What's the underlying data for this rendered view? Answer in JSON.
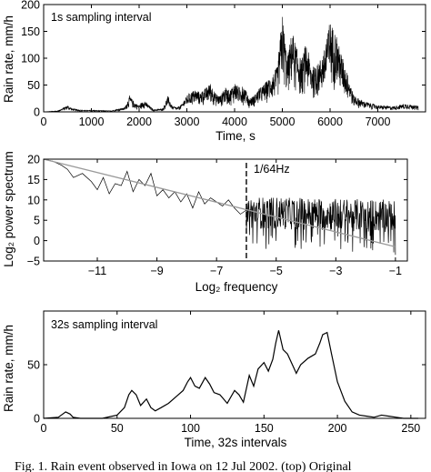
{
  "caption": "Fig. 1. Rain event observed in Iowa on 12 Jul 2002. (top) Original",
  "chart_data": [
    {
      "type": "line",
      "annotation": "1s sampling interval",
      "xlabel": "Time, s",
      "ylabel": "Rain rate, mm/h",
      "xlim": [
        0,
        8000
      ],
      "ylim": [
        0,
        200
      ],
      "xticks": [
        0,
        1000,
        2000,
        3000,
        4000,
        5000,
        6000,
        7000
      ],
      "yticks": [
        0,
        50,
        100,
        150,
        200
      ],
      "envelope": {
        "x": [
          0,
          300,
          500,
          600,
          800,
          1000,
          1400,
          1700,
          1800,
          1900,
          2000,
          2100,
          2300,
          2500,
          2600,
          2700,
          2800,
          2900,
          3000,
          3100,
          3200,
          3300,
          3400,
          3500,
          3600,
          3700,
          3800,
          3900,
          4000,
          4100,
          4200,
          4300,
          4400,
          4500,
          4600,
          4700,
          4800,
          4900,
          5000,
          5100,
          5200,
          5300,
          5400,
          5500,
          5600,
          5700,
          5800,
          5900,
          6000,
          6100,
          6200,
          6300,
          6400,
          6500,
          6700,
          7000,
          7300,
          7600,
          8000
        ],
        "y": [
          0,
          2,
          12,
          6,
          3,
          3,
          2,
          8,
          30,
          18,
          12,
          22,
          4,
          6,
          30,
          10,
          8,
          15,
          30,
          38,
          40,
          35,
          45,
          52,
          35,
          30,
          45,
          40,
          55,
          45,
          48,
          25,
          30,
          42,
          50,
          60,
          70,
          85,
          185,
          100,
          150,
          120,
          95,
          130,
          90,
          80,
          100,
          120,
          170,
          150,
          120,
          90,
          60,
          30,
          20,
          12,
          10,
          15,
          8
        ]
      }
    },
    {
      "type": "line",
      "annotation": "1/64Hz",
      "xlabel": "Log₂ frequency",
      "ylabel": "Log₂ power spectrum",
      "xlim": [
        -12.8,
        -0.6
      ],
      "ylim": [
        -5,
        20
      ],
      "xticks": [
        -11,
        -9,
        -7,
        -5,
        -3,
        -1
      ],
      "yticks": [
        -5,
        0,
        5,
        10,
        15,
        20
      ],
      "marker_x": -6,
      "spectrum": {
        "x": [
          -12.8,
          -12.5,
          -12.2,
          -12.0,
          -11.8,
          -11.5,
          -11.2,
          -11.0,
          -10.8,
          -10.6,
          -10.4,
          -10.2,
          -10.0,
          -9.8,
          -9.6,
          -9.4,
          -9.2,
          -9.0,
          -8.8,
          -8.6,
          -8.4,
          -8.2,
          -8.0,
          -7.8,
          -7.6,
          -7.4,
          -7.2,
          -7.0,
          -6.8,
          -6.6,
          -6.4,
          -6.2,
          -6.0
        ],
        "y": [
          20,
          19.5,
          18.5,
          17.5,
          15.5,
          16.5,
          14.5,
          12.5,
          15.5,
          11.5,
          14.0,
          13.5,
          17.0,
          12.0,
          15.0,
          13.5,
          16.5,
          11.0,
          12.5,
          10.5,
          12.0,
          9.5,
          11.5,
          8.0,
          12.0,
          9.0,
          10.5,
          9.5,
          8.5,
          10.0,
          8.0,
          6.5,
          7.5
        ]
      },
      "fit": {
        "x": [
          -12.8,
          -1
        ],
        "y": [
          20,
          -1.5
        ]
      }
    },
    {
      "type": "line",
      "annotation": "32s sampling interval",
      "xlabel": "Time, 32s intervals",
      "ylabel": "Rain rate, mm/h",
      "xlim": [
        0,
        260
      ],
      "ylim": [
        0,
        100
      ],
      "xticks": [
        0,
        50,
        100,
        150,
        200,
        250
      ],
      "yticks": [
        0,
        50
      ],
      "x": [
        0,
        10,
        15,
        18,
        20,
        25,
        30,
        40,
        50,
        55,
        58,
        60,
        63,
        66,
        70,
        73,
        76,
        80,
        85,
        90,
        95,
        98,
        100,
        103,
        106,
        110,
        113,
        116,
        120,
        125,
        130,
        133,
        136,
        140,
        143,
        146,
        150,
        153,
        156,
        158,
        160,
        163,
        166,
        170,
        172,
        175,
        180,
        185,
        188,
        190,
        193,
        196,
        200,
        205,
        210,
        215,
        220,
        225,
        230,
        235,
        240,
        245,
        250,
        255
      ],
      "y": [
        0,
        1,
        6,
        4,
        1,
        0,
        0,
        0,
        3,
        10,
        22,
        26,
        22,
        12,
        18,
        10,
        7,
        10,
        14,
        20,
        26,
        34,
        38,
        30,
        28,
        38,
        32,
        24,
        22,
        14,
        26,
        22,
        15,
        40,
        30,
        46,
        52,
        44,
        55,
        70,
        82,
        64,
        60,
        48,
        42,
        50,
        56,
        60,
        70,
        78,
        80,
        60,
        34,
        16,
        6,
        3,
        2,
        1,
        3,
        2,
        1,
        0,
        0,
        0
      ]
    }
  ]
}
